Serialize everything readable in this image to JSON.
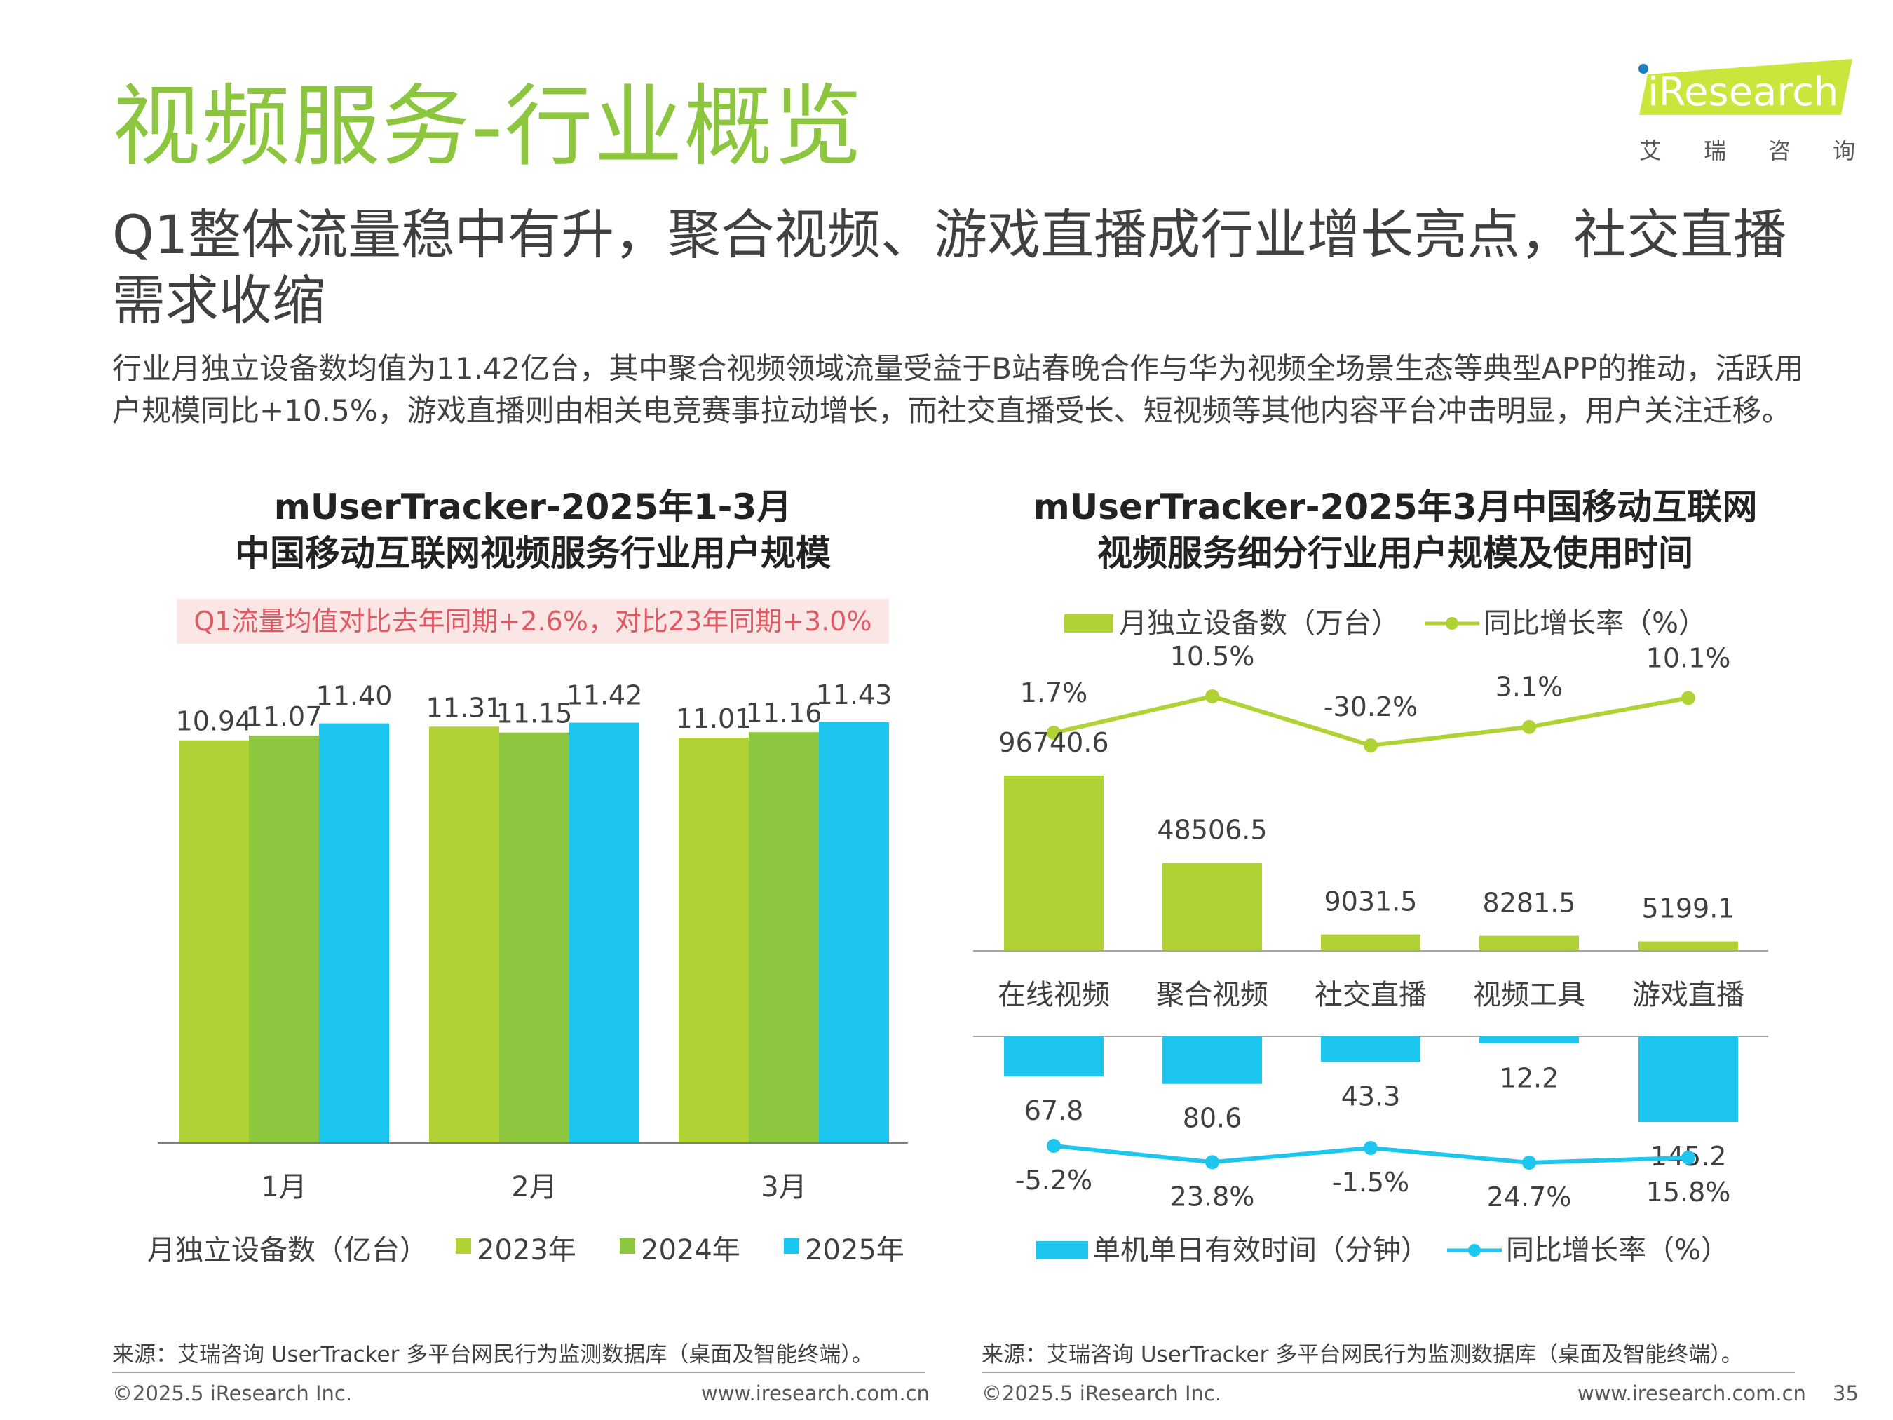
{
  "header": {
    "title": "视频服务-行业概览",
    "subtitle": "Q1整体流量稳中有升，聚合视频、游戏直播成行业增长亮点，社交直播需求收缩",
    "summary": "行业月独立设备数均值为11.42亿台，其中聚合视频领域流量受益于B站春晚合作与华为视频全场景生态等典型APP的推动，活跃用户规模同比+10.5%，游戏直播则由相关电竞赛事拉动增长，而社交直播受长、短视频等其他内容平台冲击明显，用户关注迁移。"
  },
  "logo": {
    "brand": "iResearch",
    "cn_chars": [
      "艾",
      "瑞",
      "咨",
      "询"
    ]
  },
  "colors": {
    "title_green": "#8cc63f",
    "lime": "#b0d235",
    "green": "#8dc63f",
    "cyan": "#1cc6ef",
    "note_bg": "#fbe6e6",
    "note_text": "#e05a63"
  },
  "chart_data": [
    {
      "type": "bar",
      "title_line1": "mUserTracker-2025年1-3月",
      "title_line2": "中国移动互联网视频服务行业用户规模",
      "note": "Q1流量均值对比去年同期+2.6%，对比23年同期+3.0%",
      "categories": [
        "1月",
        "2月",
        "3月"
      ],
      "series": [
        {
          "name": "2023年",
          "values": [
            10.94,
            11.31,
            11.01
          ],
          "color": "#b0d235"
        },
        {
          "name": "2024年",
          "values": [
            11.07,
            11.15,
            11.16
          ],
          "color": "#8dc63f"
        },
        {
          "name": "2025年",
          "values": [
            11.4,
            11.42,
            11.43
          ],
          "color": "#1cc6ef"
        }
      ],
      "legend_prefix": "月独立设备数（亿台）",
      "ylim": [
        0,
        11.43
      ]
    },
    {
      "type": "bar",
      "title_line1": "mUserTracker-2025年3月中国移动互联网",
      "title_line2": "视频服务细分行业用户规模及使用时间",
      "categories": [
        "在线视频",
        "聚合视频",
        "社交直播",
        "视频工具",
        "游戏直播"
      ],
      "devices": {
        "name": "月独立设备数（万台）",
        "values": [
          96740.6,
          48506.5,
          9031.5,
          8281.5,
          5199.1
        ],
        "value_labels": [
          "96740.6",
          "48506.5",
          "9031.5",
          "8281.5",
          "5199.1"
        ],
        "color": "#b0d235"
      },
      "devices_yoy": {
        "name": "同比增长率（%）",
        "values": [
          1.7,
          10.5,
          -30.2,
          3.1,
          10.1
        ],
        "labels": [
          "1.7%",
          "10.5%",
          "-30.2%",
          "3.1%",
          "10.1%"
        ],
        "color": "#b0d235"
      },
      "time": {
        "name": "单机单日有效时间（分钟）",
        "values": [
          67.8,
          80.6,
          43.3,
          12.2,
          145.2
        ],
        "value_labels": [
          "67.8",
          "80.6",
          "43.3",
          "12.2",
          "145.2"
        ],
        "color": "#1cc6ef"
      },
      "time_yoy": {
        "name": "同比增长率（%）",
        "values": [
          -5.2,
          23.8,
          -1.5,
          24.7,
          15.8
        ],
        "labels": [
          "-5.2%",
          "23.8%",
          "-1.5%",
          "24.7%",
          "15.8%"
        ],
        "color": "#1cc6ef"
      }
    }
  ],
  "footer": {
    "source": "来源：艾瑞咨询 UserTracker 多平台网民行为监测数据库（桌面及智能终端）。",
    "copyright": "©2025.5 iResearch Inc.",
    "website": "www.iresearch.com.cn",
    "page_number": "35"
  }
}
